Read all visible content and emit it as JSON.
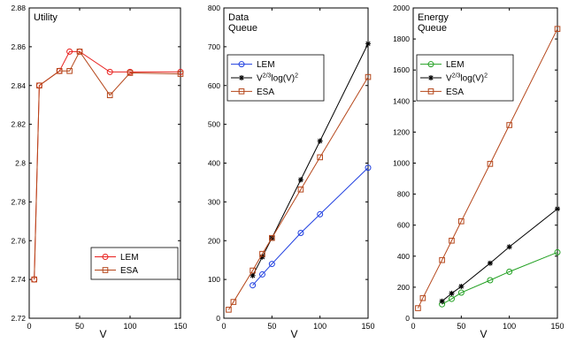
{
  "chart_data": [
    {
      "type": "line",
      "title": "Utility",
      "xlabel": "V",
      "ylabel": "",
      "xlim": [
        0,
        150
      ],
      "ylim": [
        2.72,
        2.88
      ],
      "xticks": [
        0,
        50,
        100,
        150
      ],
      "yticks": [
        2.72,
        2.74,
        2.76,
        2.78,
        2.8,
        2.82,
        2.84,
        2.86,
        2.88
      ],
      "ytick_labels": [
        "2.72",
        "2.74",
        "2.76",
        "2.78",
        "2.8",
        "2.82",
        "2.84",
        "2.86",
        "2.88"
      ],
      "grid": false,
      "legend_position": "bottom-right",
      "series": [
        {
          "name": "LEM",
          "color": "#e8201e",
          "marker": "circle",
          "x": [
            5,
            10,
            30,
            40,
            50,
            80,
            100,
            150
          ],
          "y": [
            2.74,
            2.84,
            2.8475,
            2.8575,
            2.8575,
            2.847,
            2.847,
            2.847
          ]
        },
        {
          "name": "ESA",
          "color": "#b5461a",
          "marker": "square",
          "x": [
            5,
            10,
            30,
            40,
            50,
            80,
            100,
            150
          ],
          "y": [
            2.74,
            2.84,
            2.8475,
            2.8475,
            2.8575,
            2.835,
            2.8465,
            2.846
          ]
        }
      ]
    },
    {
      "type": "line",
      "title": "Data\nQueue",
      "xlabel": "V",
      "ylabel": "",
      "xlim": [
        0,
        150
      ],
      "ylim": [
        0,
        800
      ],
      "xticks": [
        0,
        50,
        100,
        150
      ],
      "yticks": [
        0,
        100,
        200,
        300,
        400,
        500,
        600,
        700,
        800
      ],
      "ytick_labels": [
        "0",
        "100",
        "200",
        "300",
        "400",
        "500",
        "600",
        "700",
        "800"
      ],
      "grid": false,
      "legend_position": "top-left",
      "series": [
        {
          "name": "LEM",
          "color": "#1f3fe0",
          "marker": "circle",
          "x": [
            30,
            40,
            50,
            80,
            100,
            150
          ],
          "y": [
            85,
            113,
            140,
            220,
            268,
            388
          ]
        },
        {
          "name": "V^{2/3}log(V)^2",
          "color": "#000000",
          "marker": "star",
          "x": [
            30,
            40,
            50,
            80,
            100,
            150
          ],
          "y": [
            110,
            158,
            207,
            357,
            457,
            708
          ]
        },
        {
          "name": "ESA",
          "color": "#b5461a",
          "marker": "square",
          "x": [
            5,
            10,
            30,
            40,
            50,
            80,
            100,
            150
          ],
          "y": [
            22,
            42,
            123,
            166,
            207,
            332,
            415,
            622
          ]
        }
      ]
    },
    {
      "type": "line",
      "title": "Energy\nQueue",
      "xlabel": "V",
      "ylabel": "",
      "xlim": [
        0,
        150
      ],
      "ylim": [
        0,
        2000
      ],
      "xticks": [
        0,
        50,
        100,
        150
      ],
      "yticks": [
        0,
        200,
        400,
        600,
        800,
        1000,
        1200,
        1400,
        1600,
        1800,
        2000
      ],
      "ytick_labels": [
        "0",
        "200",
        "400",
        "600",
        "800",
        "1000",
        "1200",
        "1400",
        "1600",
        "1800",
        "2000"
      ],
      "grid": false,
      "legend_position": "top-left",
      "series": [
        {
          "name": "LEM",
          "color": "#22a022",
          "marker": "circle",
          "x": [
            30,
            40,
            50,
            80,
            100,
            150
          ],
          "y": [
            90,
            125,
            165,
            245,
            300,
            425
          ]
        },
        {
          "name": "V^{2/3}log(V)^2",
          "color": "#000000",
          "marker": "star",
          "x": [
            30,
            40,
            50,
            80,
            100,
            150
          ],
          "y": [
            110,
            160,
            205,
            355,
            460,
            705
          ]
        },
        {
          "name": "ESA",
          "color": "#b5461a",
          "marker": "square",
          "x": [
            5,
            10,
            30,
            40,
            50,
            80,
            100,
            150
          ],
          "y": [
            65,
            130,
            375,
            500,
            625,
            995,
            1245,
            1865
          ]
        }
      ]
    }
  ]
}
